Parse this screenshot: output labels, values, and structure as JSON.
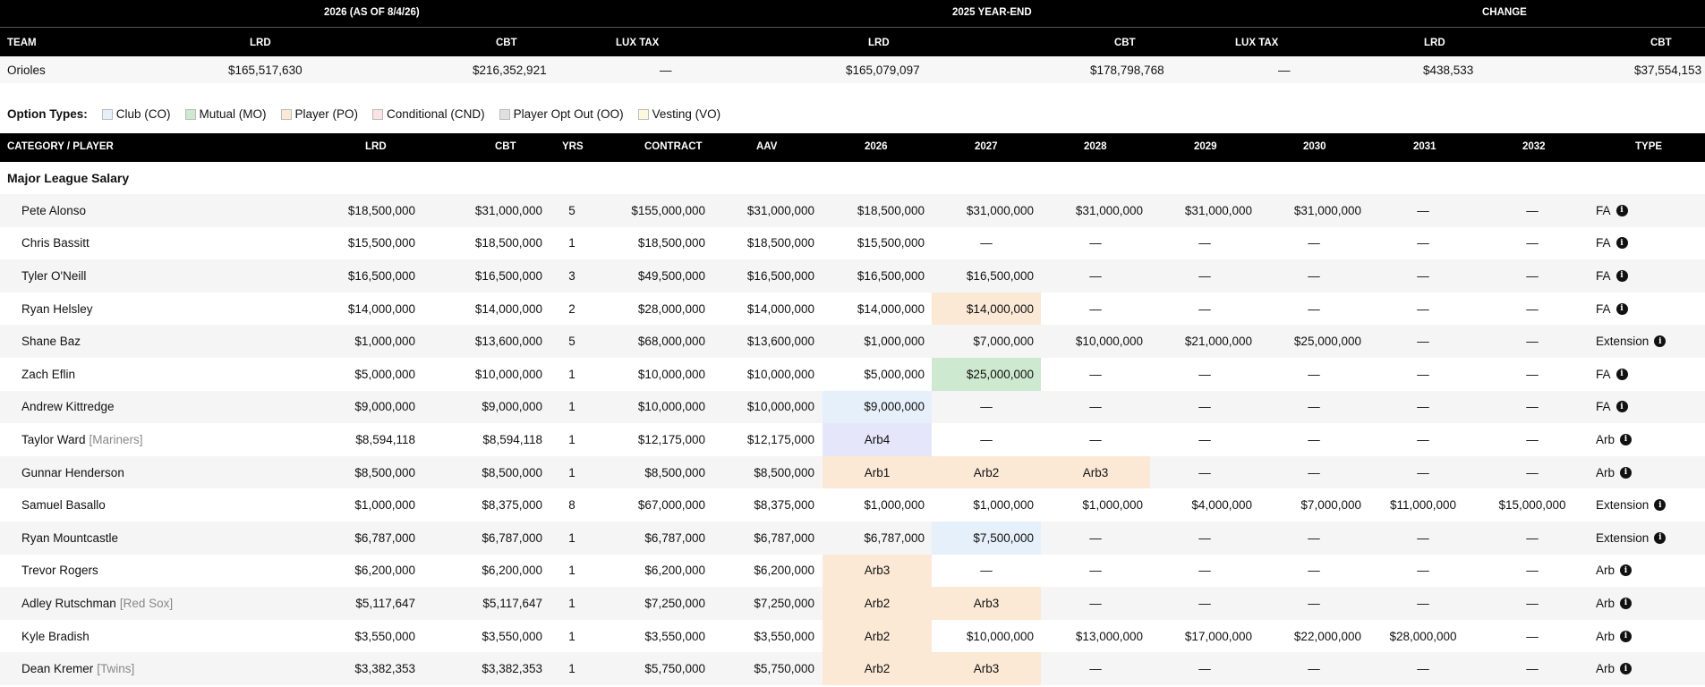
{
  "summary": {
    "group_headers": [
      "2026 (AS OF 8/4/26)",
      "2025 YEAR-END",
      "CHANGE"
    ],
    "columns": [
      "TEAM",
      "LRD",
      "CBT",
      "LUX TAX",
      "LRD",
      "CBT",
      "LUX TAX",
      "LRD",
      "CBT"
    ],
    "row": [
      "Orioles",
      "$165,517,630",
      "$216,352,921",
      "—",
      "$165,079,097",
      "$178,798,768",
      "—",
      "$438,533",
      "$37,554,153"
    ]
  },
  "legend": {
    "label": "Option Types:",
    "items": [
      {
        "label": "Club (CO)",
        "color": "#e6f0fb"
      },
      {
        "label": "Mutual (MO)",
        "color": "#cde9cf"
      },
      {
        "label": "Player (PO)",
        "color": "#fbe9d5"
      },
      {
        "label": "Conditional (CND)",
        "color": "#fde2e2"
      },
      {
        "label": "Player Opt Out (OO)",
        "color": "#e0e0e0"
      },
      {
        "label": "Vesting (VO)",
        "color": "#fdf8dc"
      }
    ]
  },
  "table": {
    "columns": [
      "CATEGORY / PLAYER",
      "LRD",
      "CBT",
      "YRS",
      "CONTRACT",
      "AAV",
      "2026",
      "2027",
      "2028",
      "2029",
      "2030",
      "2031",
      "2032",
      "TYPE"
    ],
    "section_title": "Major League Salary",
    "rows": [
      {
        "name": "Pete Alonso",
        "team": "",
        "lrd": "$18,500,000",
        "cbt": "$31,000,000",
        "yrs": "5",
        "contract": "$155,000,000",
        "aav": "$31,000,000",
        "y2026": "$18,500,000",
        "y2027": "$31,000,000",
        "y2028": "$31,000,000",
        "y2029": "$31,000,000",
        "y2030": "$31,000,000",
        "y2031": "—",
        "y2032": "—",
        "type": "FA"
      },
      {
        "name": "Chris Bassitt",
        "team": "",
        "lrd": "$15,500,000",
        "cbt": "$18,500,000",
        "yrs": "1",
        "contract": "$18,500,000",
        "aav": "$18,500,000",
        "y2026": "$15,500,000",
        "y2027": "—",
        "y2028": "—",
        "y2029": "—",
        "y2030": "—",
        "y2031": "—",
        "y2032": "—",
        "type": "FA"
      },
      {
        "name": "Tyler O'Neill",
        "team": "",
        "lrd": "$16,500,000",
        "cbt": "$16,500,000",
        "yrs": "3",
        "contract": "$49,500,000",
        "aav": "$16,500,000",
        "y2026": "$16,500,000",
        "y2027": "$16,500,000",
        "y2028": "—",
        "y2029": "—",
        "y2030": "—",
        "y2031": "—",
        "y2032": "—",
        "type": "FA"
      },
      {
        "name": "Ryan Helsley",
        "team": "",
        "lrd": "$14,000,000",
        "cbt": "$14,000,000",
        "yrs": "2",
        "contract": "$28,000,000",
        "aav": "$14,000,000",
        "y2026": "$14,000,000",
        "y2027": "$14,000,000",
        "y2028": "—",
        "y2029": "—",
        "y2030": "—",
        "y2031": "—",
        "y2032": "—",
        "type": "FA"
      },
      {
        "name": "Shane Baz",
        "team": "",
        "lrd": "$1,000,000",
        "cbt": "$13,600,000",
        "yrs": "5",
        "contract": "$68,000,000",
        "aav": "$13,600,000",
        "y2026": "$1,000,000",
        "y2027": "$7,000,000",
        "y2028": "$10,000,000",
        "y2029": "$21,000,000",
        "y2030": "$25,000,000",
        "y2031": "—",
        "y2032": "—",
        "type": "Extension"
      },
      {
        "name": "Zach Eflin",
        "team": "",
        "lrd": "$5,000,000",
        "cbt": "$10,000,000",
        "yrs": "1",
        "contract": "$10,000,000",
        "aav": "$10,000,000",
        "y2026": "$5,000,000",
        "y2027": "$25,000,000",
        "y2028": "—",
        "y2029": "—",
        "y2030": "—",
        "y2031": "—",
        "y2032": "—",
        "type": "FA"
      },
      {
        "name": "Andrew Kittredge",
        "team": "",
        "lrd": "$9,000,000",
        "cbt": "$9,000,000",
        "yrs": "1",
        "contract": "$10,000,000",
        "aav": "$10,000,000",
        "y2026": "$9,000,000",
        "y2027": "—",
        "y2028": "—",
        "y2029": "—",
        "y2030": "—",
        "y2031": "—",
        "y2032": "—",
        "type": "FA"
      },
      {
        "name": "Taylor Ward",
        "team": "[Mariners]",
        "lrd": "$8,594,118",
        "cbt": "$8,594,118",
        "yrs": "1",
        "contract": "$12,175,000",
        "aav": "$12,175,000",
        "y2026": "Arb4",
        "y2027": "—",
        "y2028": "—",
        "y2029": "—",
        "y2030": "—",
        "y2031": "—",
        "y2032": "—",
        "type": "Arb"
      },
      {
        "name": "Gunnar Henderson",
        "team": "",
        "lrd": "$8,500,000",
        "cbt": "$8,500,000",
        "yrs": "1",
        "contract": "$8,500,000",
        "aav": "$8,500,000",
        "y2026": "Arb1",
        "y2027": "Arb2",
        "y2028": "Arb3",
        "y2029": "—",
        "y2030": "—",
        "y2031": "—",
        "y2032": "—",
        "type": "Arb"
      },
      {
        "name": "Samuel Basallo",
        "team": "",
        "lrd": "$1,000,000",
        "cbt": "$8,375,000",
        "yrs": "8",
        "contract": "$67,000,000",
        "aav": "$8,375,000",
        "y2026": "$1,000,000",
        "y2027": "$1,000,000",
        "y2028": "$1,000,000",
        "y2029": "$4,000,000",
        "y2030": "$7,000,000",
        "y2031": "$11,000,000",
        "y2032": "$15,000,000",
        "type": "Extension"
      },
      {
        "name": "Ryan Mountcastle",
        "team": "",
        "lrd": "$6,787,000",
        "cbt": "$6,787,000",
        "yrs": "1",
        "contract": "$6,787,000",
        "aav": "$6,787,000",
        "y2026": "$6,787,000",
        "y2027": "$7,500,000",
        "y2028": "—",
        "y2029": "—",
        "y2030": "—",
        "y2031": "—",
        "y2032": "—",
        "type": "Extension"
      },
      {
        "name": "Trevor Rogers",
        "team": "",
        "lrd": "$6,200,000",
        "cbt": "$6,200,000",
        "yrs": "1",
        "contract": "$6,200,000",
        "aav": "$6,200,000",
        "y2026": "Arb3",
        "y2027": "—",
        "y2028": "—",
        "y2029": "—",
        "y2030": "—",
        "y2031": "—",
        "y2032": "—",
        "type": "Arb"
      },
      {
        "name": "Adley Rutschman",
        "team": "[Red Sox]",
        "lrd": "$5,117,647",
        "cbt": "$5,117,647",
        "yrs": "1",
        "contract": "$7,250,000",
        "aav": "$7,250,000",
        "y2026": "Arb2",
        "y2027": "Arb3",
        "y2028": "—",
        "y2029": "—",
        "y2030": "—",
        "y2031": "—",
        "y2032": "—",
        "type": "Arb"
      },
      {
        "name": "Kyle Bradish",
        "team": "",
        "lrd": "$3,550,000",
        "cbt": "$3,550,000",
        "yrs": "1",
        "contract": "$3,550,000",
        "aav": "$3,550,000",
        "y2026": "Arb2",
        "y2027": "$10,000,000",
        "y2028": "$13,000,000",
        "y2029": "$17,000,000",
        "y2030": "$22,000,000",
        "y2031": "$28,000,000",
        "y2032": "—",
        "type": "Arb"
      },
      {
        "name": "Dean Kremer",
        "team": "[Twins]",
        "lrd": "$3,382,353",
        "cbt": "$3,382,353",
        "yrs": "1",
        "contract": "$5,750,000",
        "aav": "$5,750,000",
        "y2026": "Arb2",
        "y2027": "Arb3",
        "y2028": "—",
        "y2029": "—",
        "y2030": "—",
        "y2031": "—",
        "y2032": "—",
        "type": "Arb"
      }
    ]
  }
}
